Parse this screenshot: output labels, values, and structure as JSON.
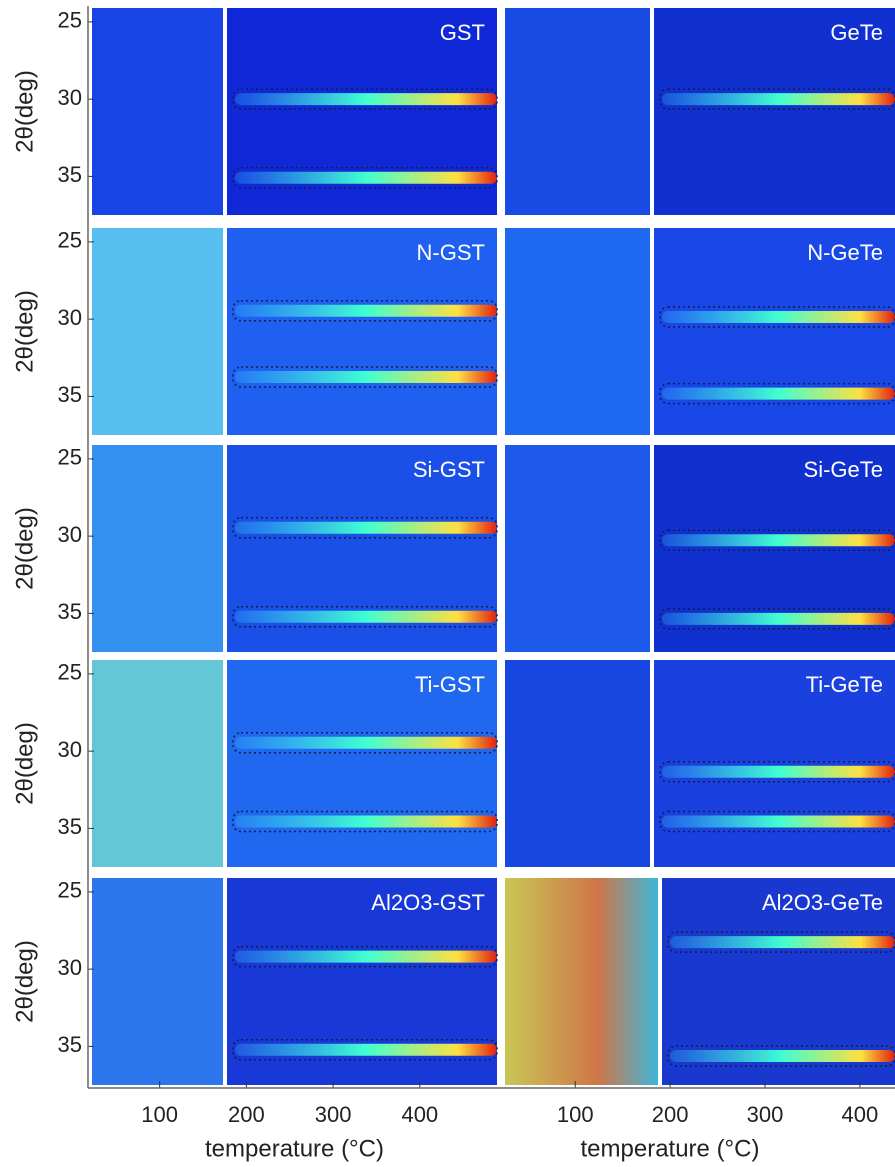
{
  "ylabel": "2θ(deg)",
  "xlabel": "temperature (°C)",
  "ylim": [
    24.1,
    37.5
  ],
  "yticks": [
    25,
    30,
    35
  ],
  "columns": [
    {
      "xlim": [
        22,
        489
      ],
      "xticks": [
        100,
        200,
        300,
        400
      ],
      "panels": [
        "GST",
        "N-GST",
        "Si-GST",
        "Ti-GST",
        "Al2O3-GST"
      ]
    },
    {
      "xlim": [
        26,
        437
      ],
      "xticks": [
        100,
        200,
        300,
        400
      ],
      "panels": [
        "GeTe",
        "N-GeTe",
        "Si-GeTe",
        "Ti-GeTe",
        "Al2O3-GeTe"
      ]
    }
  ]
}
